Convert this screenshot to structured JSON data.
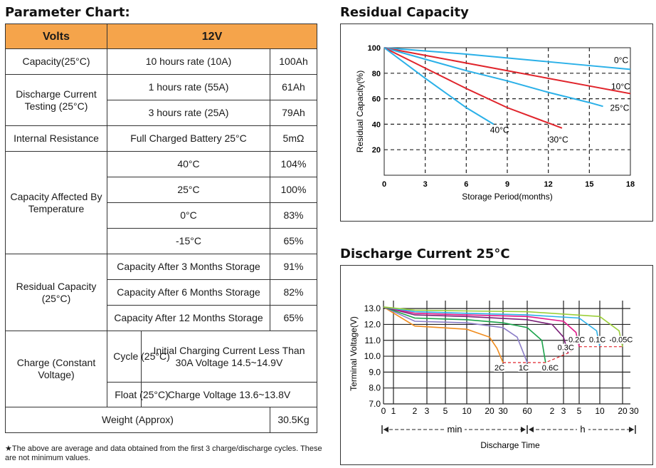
{
  "param": {
    "title": "Parameter Chart:",
    "hdr": {
      "c1": "Volts",
      "c2": "12V"
    },
    "cap": {
      "label": "Capacity(25°C)",
      "desc": "10 hours rate (10A)",
      "val": "100Ah"
    },
    "dis": {
      "label": "Discharge Current Testing (25°C)",
      "r1_desc": "1 hours rate (55A)",
      "r1_val": "61Ah",
      "r2_desc": "3 hours rate (25A)",
      "r2_val": "79Ah"
    },
    "ir": {
      "label": "Internal Resistance",
      "desc": "Full Charged Battery 25°C",
      "val": "5mΩ"
    },
    "temp": {
      "label": "Capacity Affected By Temperature",
      "rows": [
        {
          "t": "40°C",
          "v": "104%"
        },
        {
          "t": "25°C",
          "v": "100%"
        },
        {
          "t": "0°C",
          "v": "83%"
        },
        {
          "t": "-15°C",
          "v": "65%"
        }
      ]
    },
    "res": {
      "label": "Residual Capacity (25°C)",
      "rows": [
        {
          "t": "Capacity After 3 Months Storage",
          "v": "91%"
        },
        {
          "t": "Capacity After 6 Months Storage",
          "v": "82%"
        },
        {
          "t": "Capacity After 12 Months Storage",
          "v": "65%"
        }
      ]
    },
    "charge": {
      "label": "Charge (Constant Voltage)",
      "cycle": "Cycle (25°C)",
      "cycle_desc": "Initial Charging Current Less Than 30A Voltage 14.5~14.9V",
      "float": "Float (25°C)",
      "float_desc": "Charge Voltage 13.6~13.8V"
    },
    "weight": {
      "label": "Weight (Approx)",
      "val": "30.5Kg"
    },
    "note": "★The above are average and data obtained from the first 3 charge/discharge cycles. These are not minimum values."
  },
  "chart_data": [
    {
      "type": "line",
      "title": "Residual Capacity",
      "xlabel": "Storage Period(months)",
      "ylabel": "Residual Capacity(%)",
      "xlim": [
        0,
        18
      ],
      "ylim": [
        0,
        100
      ],
      "xticks": [
        "0",
        "3",
        "6",
        "9",
        "12",
        "15",
        "18"
      ],
      "yticks": [
        "20",
        "40",
        "60",
        "80",
        "100"
      ],
      "grid": true,
      "series": [
        {
          "name": "0°C",
          "color": "#2ab0e8",
          "x": [
            0,
            3,
            6,
            9,
            12,
            15,
            18
          ],
          "y": [
            100,
            97.5,
            95,
            92,
            89,
            86,
            83
          ]
        },
        {
          "name": "10°C",
          "color": "#e0242b",
          "x": [
            0,
            3,
            6,
            9,
            12,
            15,
            18
          ],
          "y": [
            100,
            94,
            88,
            82,
            76,
            70,
            64
          ]
        },
        {
          "name": "25°C",
          "color": "#2ab0e8",
          "x": [
            0,
            3,
            6,
            9,
            12,
            15,
            16
          ],
          "y": [
            100,
            91,
            82,
            74,
            65,
            57,
            54
          ]
        },
        {
          "name": "30°C",
          "color": "#e0242b",
          "x": [
            0,
            3,
            6,
            9,
            12,
            13
          ],
          "y": [
            100,
            84,
            68,
            53,
            41,
            37
          ]
        },
        {
          "name": "40°C",
          "color": "#2ab0e8",
          "x": [
            0,
            3,
            6,
            8
          ],
          "y": [
            100,
            76,
            53,
            40
          ]
        }
      ]
    },
    {
      "type": "line",
      "title": "Discharge Current 25°C",
      "xlabel": "Discharge Time",
      "ylabel": "Terminal Voltage(V)",
      "ylim": [
        7,
        13.5
      ],
      "yticks": [
        "7.0",
        "8.0",
        "9.0",
        "10.0",
        "11.0",
        "12.0",
        "13.0"
      ],
      "xticks": [
        "0",
        "1",
        "2",
        "3",
        "5",
        "10",
        "20",
        "30",
        "60",
        "2",
        "3",
        "5",
        "10",
        "20",
        "30"
      ],
      "xunits": {
        "min": "min",
        "h": "h"
      },
      "grid": true,
      "series": [
        {
          "name": "2C",
          "color": "#f08c1e",
          "x": [
            0,
            2,
            10,
            20,
            25,
            30
          ],
          "y": [
            13.1,
            11.9,
            11.7,
            11.2,
            10.5,
            9.6
          ]
        },
        {
          "name": "1C",
          "color": "#8c7ec8",
          "x": [
            0,
            2,
            10,
            30,
            45,
            60
          ],
          "y": [
            13.1,
            12.2,
            12.1,
            11.8,
            11.2,
            9.6
          ]
        },
        {
          "name": "0.6C",
          "color": "#1aa24a",
          "x": [
            0,
            2,
            10,
            30,
            60,
            90,
            100
          ],
          "y": [
            13.1,
            12.4,
            12.3,
            12.1,
            11.8,
            11.0,
            9.6
          ]
        },
        {
          "name": "0.3C",
          "color": "#7a1f78",
          "x": [
            0,
            2,
            10,
            60,
            120,
            180,
            210
          ],
          "y": [
            13.1,
            12.6,
            12.5,
            12.3,
            12.0,
            11.2,
            10.2
          ]
        },
        {
          "name": "0.2C",
          "color": "#e0198a",
          "x": [
            0,
            2,
            10,
            60,
            180,
            270,
            300
          ],
          "y": [
            13.1,
            12.7,
            12.6,
            12.5,
            12.2,
            11.5,
            10.6
          ]
        },
        {
          "name": "0.1C",
          "color": "#2ab0e8",
          "x": [
            0,
            2,
            10,
            60,
            300,
            540,
            600
          ],
          "y": [
            13.1,
            12.8,
            12.7,
            12.6,
            12.4,
            11.6,
            10.6
          ]
        },
        {
          "name": "0.05C",
          "color": "#9ccf3a",
          "x": [
            0,
            2,
            10,
            60,
            600,
            1080,
            1200
          ],
          "y": [
            13.1,
            12.9,
            12.85,
            12.8,
            12.5,
            11.6,
            10.6
          ]
        }
      ]
    }
  ]
}
